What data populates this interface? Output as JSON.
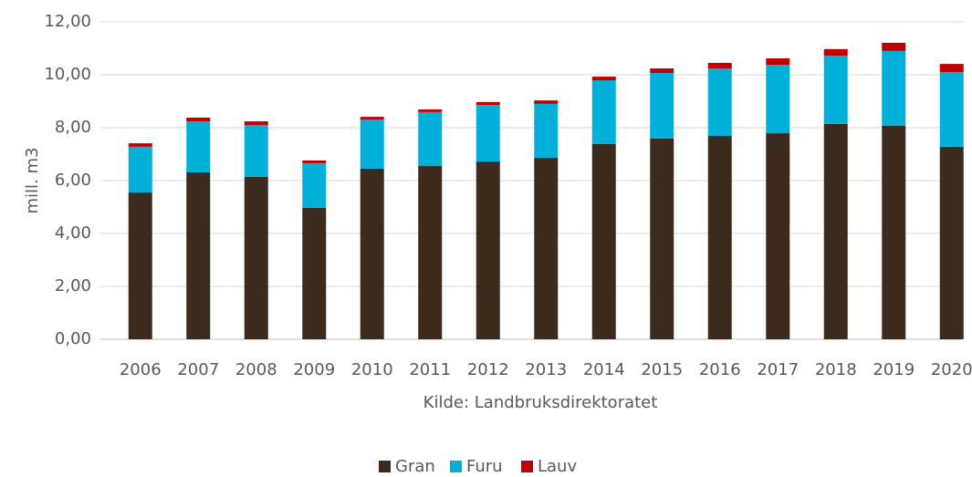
{
  "chart_data": {
    "type": "stacked_bar",
    "ylabel": "mill. m3",
    "xlabel": "Kilde: Landbruksdirektoratet",
    "categories": [
      "2006",
      "2007",
      "2008",
      "2009",
      "2010",
      "2011",
      "2012",
      "2013",
      "2014",
      "2015",
      "2016",
      "2017",
      "2018",
      "2019",
      "2020"
    ],
    "series": [
      {
        "name": "Gran",
        "color": "#3b2a1e",
        "values": [
          5.55,
          6.31,
          6.14,
          4.97,
          6.45,
          6.55,
          6.72,
          6.86,
          7.38,
          7.59,
          7.69,
          7.79,
          8.14,
          8.07,
          7.28
        ]
      },
      {
        "name": "Furu",
        "color": "#00b0d8",
        "values": [
          1.73,
          1.93,
          1.96,
          1.69,
          1.86,
          2.04,
          2.14,
          2.04,
          2.41,
          2.48,
          2.55,
          2.59,
          2.58,
          2.83,
          2.82
        ]
      },
      {
        "name": "Lauv",
        "color": "#c00000",
        "values": [
          0.13,
          0.14,
          0.14,
          0.1,
          0.1,
          0.1,
          0.11,
          0.13,
          0.14,
          0.17,
          0.21,
          0.24,
          0.25,
          0.31,
          0.31
        ]
      }
    ],
    "ylim": [
      0,
      12
    ],
    "yticks": [
      {
        "value": 0,
        "label": "0,00"
      },
      {
        "value": 2,
        "label": "2,00"
      },
      {
        "value": 4,
        "label": "4,00"
      },
      {
        "value": 6,
        "label": "6,00"
      },
      {
        "value": 8,
        "label": "8,00"
      },
      {
        "value": 10,
        "label": "10,00"
      },
      {
        "value": 12,
        "label": "12,00"
      }
    ],
    "grid": true,
    "legend": "bottom"
  }
}
